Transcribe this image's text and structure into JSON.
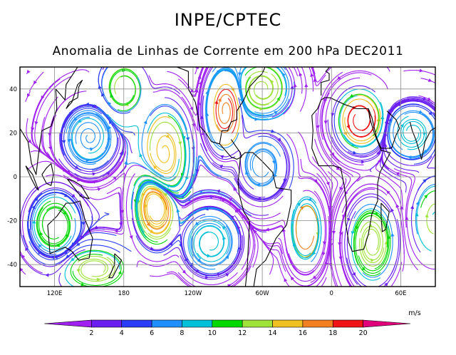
{
  "header": {
    "title": "INPE/CPTEC",
    "subtitle": "Anomalia de Linhas de Corrente em 200 hPa DEC2011"
  },
  "map": {
    "projection": "cylindrical-equidistant",
    "lat_range": [
      -50,
      50
    ],
    "lon_range": [
      90,
      450
    ],
    "lat_ticks": [
      {
        "value": 40,
        "label": "40"
      },
      {
        "value": 20,
        "label": "20"
      },
      {
        "value": 0,
        "label": "0"
      },
      {
        "value": -20,
        "label": "-20"
      },
      {
        "value": -40,
        "label": "-40"
      }
    ],
    "lon_ticks": [
      {
        "value": 120,
        "label": "120E"
      },
      {
        "value": 180,
        "label": "180"
      },
      {
        "value": 240,
        "label": "120W"
      },
      {
        "value": 300,
        "label": "60W"
      },
      {
        "value": 360,
        "label": "0"
      },
      {
        "value": 420,
        "label": "60E"
      }
    ],
    "grid": true
  },
  "colorbar": {
    "unit": "m/s",
    "labels": [
      "2",
      "4",
      "6",
      "8",
      "10",
      "12",
      "14",
      "16",
      "18",
      "20"
    ],
    "colors": [
      "#a020f0",
      "#6a1ff0",
      "#2a3cf5",
      "#1e90ff",
      "#00bfd8",
      "#00d700",
      "#9fe33a",
      "#f0c020",
      "#f28020",
      "#f01414",
      "#e0007a"
    ]
  }
}
